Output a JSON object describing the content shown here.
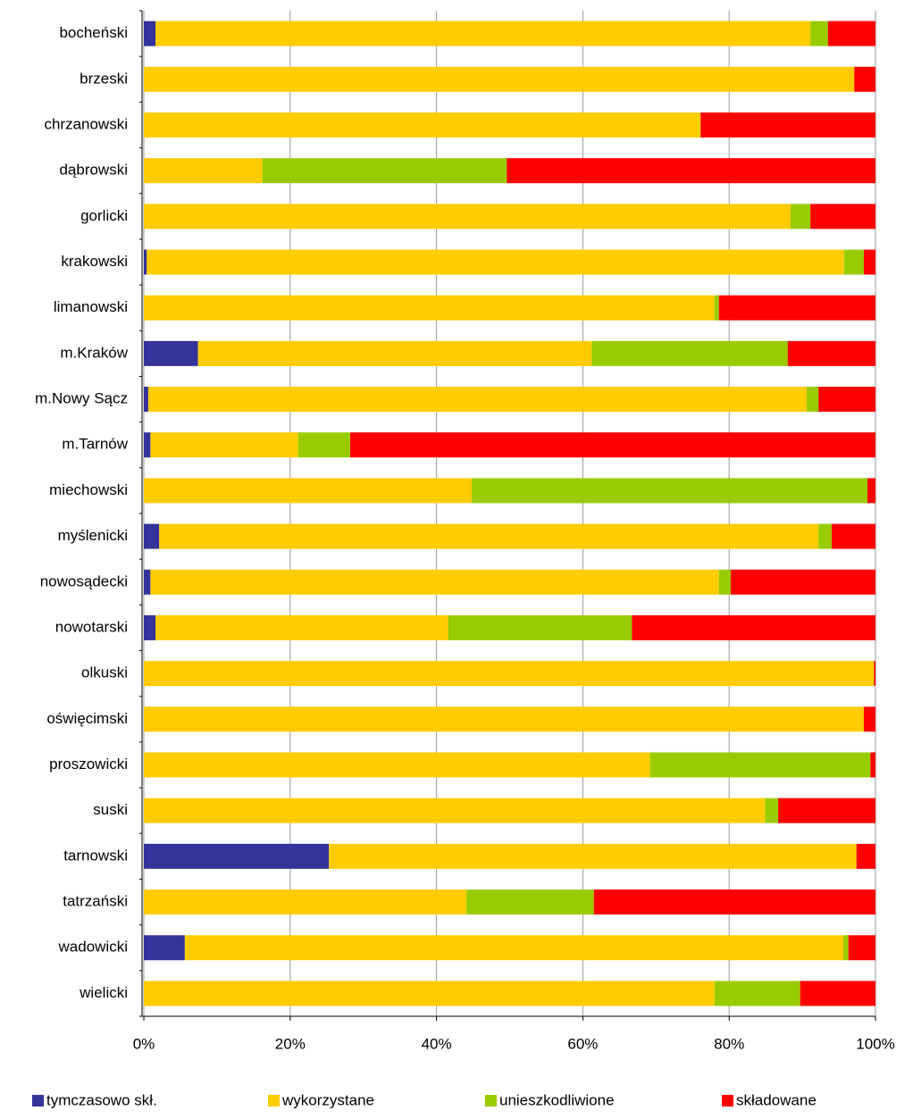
{
  "chart_data": {
    "type": "stacked-bar-horizontal",
    "categories": [
      "bocheński",
      "brzeski",
      "chrzanowski",
      "dąbrowski",
      "gorlicki",
      "krakowski",
      "limanowski",
      "m.Kraków",
      "m.Nowy Sącz",
      "m.Tarnów",
      "miechowski",
      "myślenicki",
      "nowosądecki",
      "nowotarski",
      "olkuski",
      "oświęcimski",
      "proszowicki",
      "suski",
      "tarnowski",
      "tatrzański",
      "wadowicki",
      "wielicki"
    ],
    "series": [
      {
        "name": "tymczasowo skł.",
        "color": "#333399",
        "values": [
          1.6,
          0,
          0,
          0,
          0,
          0.4,
          0,
          7.4,
          0.6,
          0.9,
          0,
          2.1,
          0.9,
          1.6,
          0,
          0,
          0,
          0,
          25.3,
          0,
          5.6,
          0
        ]
      },
      {
        "name": "wykorzystane",
        "color": "#ffcc00",
        "values": [
          89.5,
          97.1,
          76.1,
          16.2,
          88.4,
          95.3,
          78.0,
          53.8,
          90.0,
          20.2,
          44.8,
          90.1,
          77.7,
          40.0,
          99.8,
          98.4,
          69.2,
          84.9,
          72.1,
          44.1,
          90.0,
          78.0
        ]
      },
      {
        "name": "unieszkodliwione",
        "color": "#99cc00",
        "values": [
          2.4,
          0,
          0,
          33.4,
          2.7,
          2.7,
          0.6,
          26.8,
          1.6,
          7.1,
          54.1,
          1.8,
          1.6,
          25.1,
          0,
          0,
          30.1,
          1.8,
          0,
          17.4,
          0.7,
          11.7
        ]
      },
      {
        "name": "składowane",
        "color": "#ff0000",
        "values": [
          6.5,
          2.9,
          23.9,
          50.4,
          8.9,
          1.6,
          21.4,
          12.0,
          7.8,
          71.8,
          1.1,
          6.0,
          19.8,
          33.3,
          0.2,
          1.6,
          0.7,
          13.3,
          2.6,
          38.5,
          3.7,
          10.3
        ]
      }
    ],
    "xlim": [
      0,
      100
    ],
    "xticks": [
      {
        "value": 0,
        "label": "0%"
      },
      {
        "value": 20,
        "label": "20%"
      },
      {
        "value": 40,
        "label": "40%"
      },
      {
        "value": 60,
        "label": "60%"
      },
      {
        "value": 80,
        "label": "80%"
      },
      {
        "value": 100,
        "label": "100%"
      }
    ],
    "grid": true
  }
}
